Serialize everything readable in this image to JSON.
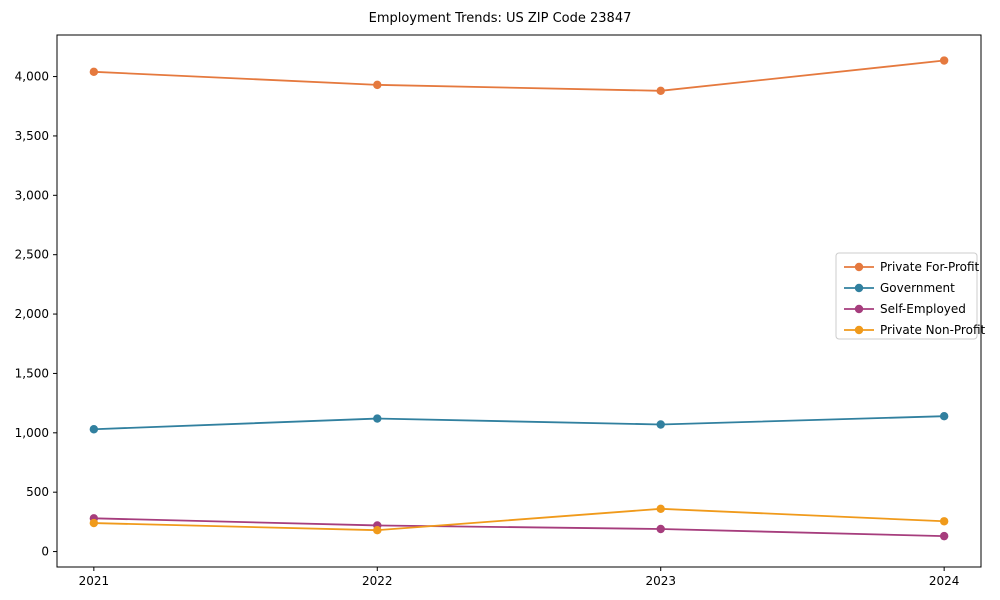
{
  "title": "Employment Trends: US ZIP Code 23847",
  "chart_data": {
    "type": "line",
    "title": "Employment Trends: US ZIP Code 23847",
    "xlabel": "",
    "ylabel": "",
    "x": [
      2021,
      2022,
      2023,
      2024
    ],
    "x_tick_labels": [
      "2021",
      "2022",
      "2023",
      "2024"
    ],
    "y_ticks": [
      0,
      500,
      1000,
      1500,
      2000,
      2500,
      3000,
      3500,
      4000
    ],
    "y_tick_labels": [
      "0",
      "500",
      "1,000",
      "1,500",
      "2,000",
      "2,500",
      "3,000",
      "3,500",
      "4,000"
    ],
    "xlim": [
      2020.87,
      2024.13
    ],
    "ylim": [
      -130,
      4350
    ],
    "grid": false,
    "legend_position": "center-right",
    "series": [
      {
        "name": "Private For-Profit",
        "color": "#E5793E",
        "values": [
          4040,
          3930,
          3880,
          4135
        ]
      },
      {
        "name": "Government",
        "color": "#31809F",
        "values": [
          1030,
          1120,
          1070,
          1140
        ]
      },
      {
        "name": "Self-Employed",
        "color": "#A63D7D",
        "values": [
          280,
          220,
          190,
          130
        ]
      },
      {
        "name": "Private Non-Profit",
        "color": "#F09A1B",
        "values": [
          240,
          180,
          360,
          255
        ]
      }
    ],
    "style": {
      "plot_border_color": "#000000",
      "tick_color": "#000000",
      "legend_border_color": "#cccccc",
      "legend_background": "#ffffff",
      "background": "#ffffff"
    }
  }
}
